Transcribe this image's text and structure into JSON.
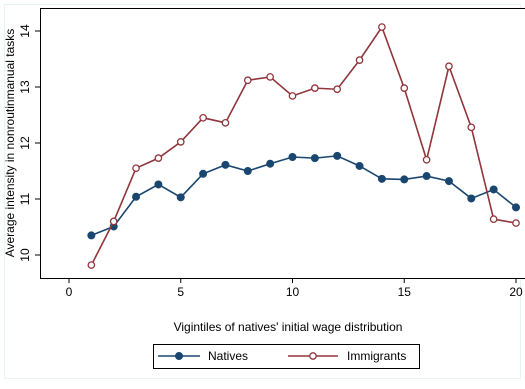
{
  "chart_data": {
    "type": "line",
    "xlabel": "Vigintiles of natives' initial wage distribution",
    "ylabel": "Average intensity in nonroutinmanual tasks",
    "xlim": [
      0,
      20
    ],
    "ylim": [
      9.8,
      14.1
    ],
    "x_ticks": [
      0,
      5,
      10,
      15,
      20
    ],
    "y_ticks": [
      10,
      11,
      12,
      13,
      14
    ],
    "grid": false,
    "legend_position": "bottom",
    "x": [
      1,
      2,
      3,
      4,
      5,
      6,
      7,
      8,
      9,
      10,
      11,
      12,
      13,
      14,
      15,
      16,
      17,
      18,
      19,
      20
    ],
    "series": [
      {
        "name": "Natives",
        "color": "#1a476f",
        "marker": "filled-circle",
        "values": [
          10.35,
          10.51,
          11.04,
          11.26,
          11.03,
          11.45,
          11.61,
          11.5,
          11.63,
          11.75,
          11.73,
          11.77,
          11.59,
          11.36,
          11.35,
          11.41,
          11.32,
          11.01,
          11.17,
          10.85
        ]
      },
      {
        "name": "Immigrants",
        "color": "#90353b",
        "marker": "hollow-circle",
        "values": [
          9.82,
          10.6,
          11.55,
          11.73,
          12.02,
          12.45,
          12.36,
          13.12,
          13.18,
          12.84,
          12.98,
          12.96,
          13.48,
          14.07,
          12.98,
          11.7,
          13.37,
          12.28,
          10.64,
          10.57
        ]
      }
    ]
  }
}
